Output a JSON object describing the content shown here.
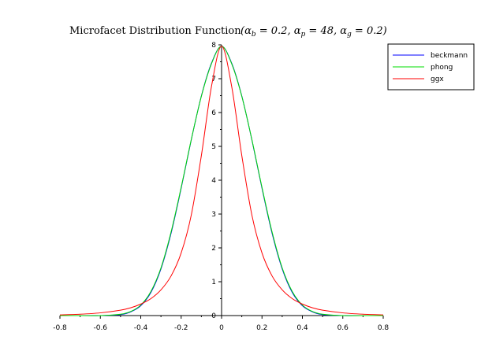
{
  "chart_data": {
    "type": "line",
    "title": "Microfacet Distribution Function",
    "title_math": "(αb = 0.2, αp = 48, αg = 0.2)",
    "title_math_parts": {
      "open": "(",
      "a1": "α",
      "s1": "b",
      "v1": " = 0.2, ",
      "a2": "α",
      "s2": "p",
      "v2": " = 48, ",
      "a3": "α",
      "s3": "g",
      "v3": " = 0.2)"
    },
    "xlabel": "",
    "ylabel": "",
    "xlim": [
      -0.8,
      0.8
    ],
    "ylim": [
      0,
      8
    ],
    "x_ticks": [
      "-0.8",
      "-0.6",
      "-0.4",
      "-0.2",
      "0",
      "0.2",
      "0.4",
      "0.6",
      "0.8"
    ],
    "y_ticks": [
      "0",
      "1",
      "2",
      "3",
      "4",
      "5",
      "6",
      "7",
      "8"
    ],
    "legend_position": "top-right",
    "series": [
      {
        "name": "beckmann",
        "color": "#0000ff",
        "x": [
          -0.8,
          -0.7,
          -0.6,
          -0.5,
          -0.45,
          -0.4,
          -0.35,
          -0.3,
          -0.25,
          -0.2,
          -0.15,
          -0.1,
          -0.05,
          0,
          0.05,
          0.1,
          0.15,
          0.2,
          0.25,
          0.3,
          0.35,
          0.4,
          0.45,
          0.5,
          0.6,
          0.7,
          0.8
        ],
        "y": [
          0.0,
          0.0,
          0.0,
          0.03,
          0.11,
          0.29,
          0.68,
          1.38,
          2.43,
          3.76,
          5.19,
          6.49,
          7.46,
          7.96,
          7.46,
          6.49,
          5.19,
          3.76,
          2.43,
          1.38,
          0.68,
          0.29,
          0.11,
          0.03,
          0.0,
          0.0,
          0.0
        ]
      },
      {
        "name": "phong",
        "color": "#00dd00",
        "x": [
          -0.8,
          -0.7,
          -0.6,
          -0.5,
          -0.45,
          -0.4,
          -0.35,
          -0.3,
          -0.25,
          -0.2,
          -0.15,
          -0.1,
          -0.05,
          0,
          0.05,
          0.1,
          0.15,
          0.2,
          0.25,
          0.3,
          0.35,
          0.4,
          0.45,
          0.5,
          0.6,
          0.7,
          0.8
        ],
        "y": [
          0.0,
          0.0,
          0.0,
          0.04,
          0.12,
          0.31,
          0.71,
          1.41,
          2.47,
          3.79,
          5.2,
          6.48,
          7.44,
          7.96,
          7.44,
          6.48,
          5.2,
          3.79,
          2.47,
          1.41,
          0.71,
          0.31,
          0.12,
          0.04,
          0.0,
          0.0,
          0.0
        ]
      },
      {
        "name": "ggx",
        "color": "#ff0000",
        "x": [
          -0.8,
          -0.7,
          -0.6,
          -0.5,
          -0.45,
          -0.4,
          -0.35,
          -0.3,
          -0.25,
          -0.2,
          -0.15,
          -0.1,
          -0.05,
          0,
          0.05,
          0.1,
          0.15,
          0.2,
          0.25,
          0.3,
          0.35,
          0.4,
          0.45,
          0.5,
          0.6,
          0.7,
          0.8
        ],
        "y": [
          0.02,
          0.04,
          0.08,
          0.16,
          0.23,
          0.34,
          0.5,
          0.76,
          1.17,
          1.85,
          2.97,
          4.73,
          6.77,
          7.96,
          6.77,
          4.73,
          2.97,
          1.85,
          1.17,
          0.76,
          0.5,
          0.34,
          0.23,
          0.16,
          0.08,
          0.04,
          0.02
        ]
      }
    ]
  }
}
